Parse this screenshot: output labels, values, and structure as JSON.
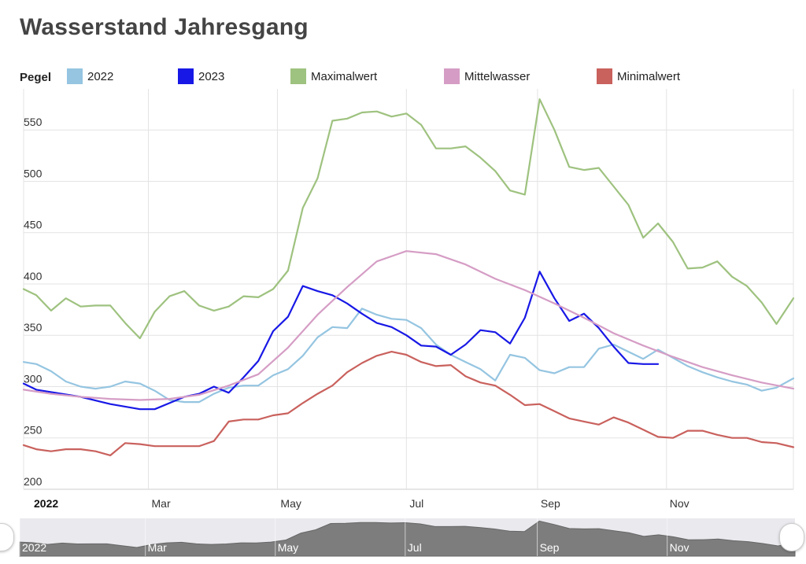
{
  "title": "Wasserstand Jahresgang",
  "legend": {
    "label": "Pegel",
    "items": [
      {
        "name": "2022",
        "color": "#95c5e1"
      },
      {
        "name": "2023",
        "color": "#1818e6"
      },
      {
        "name": "Maximalwert",
        "color": "#9ec27f"
      },
      {
        "name": "Mittelwasser",
        "color": "#d59dc5"
      },
      {
        "name": "Minimalwert",
        "color": "#c9615d"
      }
    ]
  },
  "chart_data": {
    "type": "line",
    "title": "Wasserstand Jahresgang",
    "xlabel": "",
    "ylabel": "",
    "ylim": [
      200,
      590
    ],
    "yticks": [
      200,
      250,
      300,
      350,
      400,
      450,
      500,
      550
    ],
    "xrange": [
      "2022-01-01",
      "2022-12-31"
    ],
    "xticks": [
      {
        "label": "2022",
        "date": "2022-01-01",
        "bold": true
      },
      {
        "label": "Mar",
        "date": "2022-03-01"
      },
      {
        "label": "May",
        "date": "2022-05-01"
      },
      {
        "label": "Jul",
        "date": "2022-07-01"
      },
      {
        "label": "Sep",
        "date": "2022-09-01"
      },
      {
        "label": "Nov",
        "date": "2022-11-01"
      }
    ],
    "grid": true,
    "legend_position": "top",
    "series": [
      {
        "name": "2022",
        "color": "#95c5e1",
        "points": [
          [
            "2022-01-01",
            324
          ],
          [
            "2022-01-07",
            322
          ],
          [
            "2022-01-14",
            315
          ],
          [
            "2022-01-21",
            305
          ],
          [
            "2022-01-28",
            300
          ],
          [
            "2022-02-04",
            298
          ],
          [
            "2022-02-11",
            300
          ],
          [
            "2022-02-18",
            305
          ],
          [
            "2022-02-25",
            303
          ],
          [
            "2022-03-04",
            296
          ],
          [
            "2022-03-11",
            287
          ],
          [
            "2022-03-18",
            285
          ],
          [
            "2022-03-25",
            285
          ],
          [
            "2022-04-01",
            293
          ],
          [
            "2022-04-08",
            299
          ],
          [
            "2022-04-15",
            301
          ],
          [
            "2022-04-22",
            301
          ],
          [
            "2022-04-29",
            311
          ],
          [
            "2022-05-06",
            317
          ],
          [
            "2022-05-13",
            330
          ],
          [
            "2022-05-20",
            348
          ],
          [
            "2022-05-27",
            358
          ],
          [
            "2022-06-03",
            357
          ],
          [
            "2022-06-10",
            376
          ],
          [
            "2022-06-17",
            370
          ],
          [
            "2022-06-24",
            366
          ],
          [
            "2022-07-01",
            365
          ],
          [
            "2022-07-08",
            357
          ],
          [
            "2022-07-15",
            341
          ],
          [
            "2022-07-22",
            331
          ],
          [
            "2022-07-29",
            324
          ],
          [
            "2022-08-05",
            317
          ],
          [
            "2022-08-12",
            306
          ],
          [
            "2022-08-19",
            331
          ],
          [
            "2022-08-26",
            328
          ],
          [
            "2022-09-02",
            316
          ],
          [
            "2022-09-09",
            313
          ],
          [
            "2022-09-16",
            319
          ],
          [
            "2022-09-23",
            319
          ],
          [
            "2022-09-30",
            337
          ],
          [
            "2022-10-07",
            341
          ],
          [
            "2022-10-14",
            334
          ],
          [
            "2022-10-21",
            327
          ],
          [
            "2022-10-28",
            336
          ],
          [
            "2022-11-04",
            328
          ],
          [
            "2022-11-11",
            320
          ],
          [
            "2022-11-18",
            314
          ],
          [
            "2022-11-25",
            309
          ],
          [
            "2022-12-02",
            305
          ],
          [
            "2022-12-09",
            302
          ],
          [
            "2022-12-16",
            296
          ],
          [
            "2022-12-23",
            299
          ],
          [
            "2022-12-31",
            308
          ]
        ]
      },
      {
        "name": "2023",
        "color": "#1818e6",
        "points": [
          [
            "2022-01-01",
            303
          ],
          [
            "2022-01-07",
            297
          ],
          [
            "2022-01-28",
            290
          ],
          [
            "2022-02-11",
            283
          ],
          [
            "2022-02-25",
            278
          ],
          [
            "2022-03-04",
            278
          ],
          [
            "2022-03-11",
            284
          ],
          [
            "2022-03-18",
            290
          ],
          [
            "2022-03-25",
            293
          ],
          [
            "2022-04-01",
            300
          ],
          [
            "2022-04-08",
            294
          ],
          [
            "2022-04-15",
            309
          ],
          [
            "2022-04-22",
            325
          ],
          [
            "2022-04-29",
            354
          ],
          [
            "2022-05-06",
            368
          ],
          [
            "2022-05-13",
            398
          ],
          [
            "2022-05-20",
            393
          ],
          [
            "2022-05-27",
            389
          ],
          [
            "2022-06-03",
            381
          ],
          [
            "2022-06-10",
            371
          ],
          [
            "2022-06-17",
            362
          ],
          [
            "2022-06-24",
            358
          ],
          [
            "2022-07-01",
            350
          ],
          [
            "2022-07-08",
            340
          ],
          [
            "2022-07-15",
            339
          ],
          [
            "2022-07-22",
            331
          ],
          [
            "2022-07-29",
            341
          ],
          [
            "2022-08-05",
            355
          ],
          [
            "2022-08-12",
            353
          ],
          [
            "2022-08-19",
            342
          ],
          [
            "2022-08-26",
            367
          ],
          [
            "2022-09-02",
            412
          ],
          [
            "2022-09-09",
            386
          ],
          [
            "2022-09-16",
            364
          ],
          [
            "2022-09-23",
            371
          ],
          [
            "2022-09-30",
            357
          ],
          [
            "2022-10-07",
            339
          ],
          [
            "2022-10-14",
            323
          ],
          [
            "2022-10-21",
            322
          ],
          [
            "2022-10-28",
            322
          ]
        ]
      },
      {
        "name": "Maximalwert",
        "color": "#9ec27f",
        "points": [
          [
            "2022-01-01",
            395
          ],
          [
            "2022-01-07",
            389
          ],
          [
            "2022-01-14",
            374
          ],
          [
            "2022-01-21",
            386
          ],
          [
            "2022-01-28",
            378
          ],
          [
            "2022-02-04",
            379
          ],
          [
            "2022-02-11",
            379
          ],
          [
            "2022-02-18",
            362
          ],
          [
            "2022-02-25",
            347
          ],
          [
            "2022-03-04",
            373
          ],
          [
            "2022-03-11",
            388
          ],
          [
            "2022-03-18",
            393
          ],
          [
            "2022-03-25",
            379
          ],
          [
            "2022-04-01",
            374
          ],
          [
            "2022-04-08",
            378
          ],
          [
            "2022-04-15",
            388
          ],
          [
            "2022-04-22",
            387
          ],
          [
            "2022-04-29",
            395
          ],
          [
            "2022-05-06",
            413
          ],
          [
            "2022-05-13",
            474
          ],
          [
            "2022-05-20",
            503
          ],
          [
            "2022-05-27",
            559
          ],
          [
            "2022-06-03",
            561
          ],
          [
            "2022-06-10",
            567
          ],
          [
            "2022-06-17",
            568
          ],
          [
            "2022-06-24",
            563
          ],
          [
            "2022-07-01",
            566
          ],
          [
            "2022-07-08",
            555
          ],
          [
            "2022-07-15",
            532
          ],
          [
            "2022-07-22",
            532
          ],
          [
            "2022-07-29",
            534
          ],
          [
            "2022-08-05",
            523
          ],
          [
            "2022-08-12",
            510
          ],
          [
            "2022-08-19",
            491
          ],
          [
            "2022-08-26",
            487
          ],
          [
            "2022-09-02",
            580
          ],
          [
            "2022-09-09",
            550
          ],
          [
            "2022-09-16",
            514
          ],
          [
            "2022-09-23",
            511
          ],
          [
            "2022-09-30",
            513
          ],
          [
            "2022-10-07",
            495
          ],
          [
            "2022-10-14",
            477
          ],
          [
            "2022-10-21",
            445
          ],
          [
            "2022-10-28",
            459
          ],
          [
            "2022-11-04",
            441
          ],
          [
            "2022-11-11",
            415
          ],
          [
            "2022-11-18",
            416
          ],
          [
            "2022-11-25",
            422
          ],
          [
            "2022-12-02",
            407
          ],
          [
            "2022-12-09",
            398
          ],
          [
            "2022-12-16",
            382
          ],
          [
            "2022-12-23",
            361
          ],
          [
            "2022-12-31",
            386
          ]
        ]
      },
      {
        "name": "Mittelwasser",
        "color": "#d59dc5",
        "points": [
          [
            "2022-01-01",
            297
          ],
          [
            "2022-01-14",
            293
          ],
          [
            "2022-01-28",
            290
          ],
          [
            "2022-02-11",
            288
          ],
          [
            "2022-02-25",
            287
          ],
          [
            "2022-03-11",
            288
          ],
          [
            "2022-03-25",
            292
          ],
          [
            "2022-04-08",
            301
          ],
          [
            "2022-04-22",
            312
          ],
          [
            "2022-05-06",
            338
          ],
          [
            "2022-05-20",
            370
          ],
          [
            "2022-06-03",
            397
          ],
          [
            "2022-06-17",
            422
          ],
          [
            "2022-07-01",
            432
          ],
          [
            "2022-07-15",
            429
          ],
          [
            "2022-07-29",
            419
          ],
          [
            "2022-08-12",
            405
          ],
          [
            "2022-08-26",
            394
          ],
          [
            "2022-09-09",
            381
          ],
          [
            "2022-09-23",
            367
          ],
          [
            "2022-10-07",
            352
          ],
          [
            "2022-10-21",
            340
          ],
          [
            "2022-11-04",
            329
          ],
          [
            "2022-11-18",
            319
          ],
          [
            "2022-12-02",
            311
          ],
          [
            "2022-12-16",
            304
          ],
          [
            "2022-12-31",
            298
          ]
        ]
      },
      {
        "name": "Minimalwert",
        "color": "#c9615d",
        "points": [
          [
            "2022-01-01",
            243
          ],
          [
            "2022-01-07",
            239
          ],
          [
            "2022-01-14",
            237
          ],
          [
            "2022-01-21",
            239
          ],
          [
            "2022-01-28",
            239
          ],
          [
            "2022-02-04",
            237
          ],
          [
            "2022-02-11",
            233
          ],
          [
            "2022-02-18",
            245
          ],
          [
            "2022-02-25",
            244
          ],
          [
            "2022-03-04",
            242
          ],
          [
            "2022-03-11",
            242
          ],
          [
            "2022-03-18",
            242
          ],
          [
            "2022-03-25",
            242
          ],
          [
            "2022-04-01",
            247
          ],
          [
            "2022-04-08",
            266
          ],
          [
            "2022-04-15",
            268
          ],
          [
            "2022-04-22",
            268
          ],
          [
            "2022-04-29",
            272
          ],
          [
            "2022-05-06",
            274
          ],
          [
            "2022-05-13",
            284
          ],
          [
            "2022-05-20",
            293
          ],
          [
            "2022-05-27",
            301
          ],
          [
            "2022-06-03",
            314
          ],
          [
            "2022-06-10",
            323
          ],
          [
            "2022-06-17",
            330
          ],
          [
            "2022-06-24",
            334
          ],
          [
            "2022-07-01",
            331
          ],
          [
            "2022-07-08",
            324
          ],
          [
            "2022-07-15",
            320
          ],
          [
            "2022-07-22",
            321
          ],
          [
            "2022-07-29",
            310
          ],
          [
            "2022-08-05",
            304
          ],
          [
            "2022-08-12",
            301
          ],
          [
            "2022-08-19",
            292
          ],
          [
            "2022-08-26",
            282
          ],
          [
            "2022-09-02",
            283
          ],
          [
            "2022-09-09",
            276
          ],
          [
            "2022-09-16",
            269
          ],
          [
            "2022-09-23",
            266
          ],
          [
            "2022-09-30",
            263
          ],
          [
            "2022-10-07",
            270
          ],
          [
            "2022-10-14",
            265
          ],
          [
            "2022-10-21",
            258
          ],
          [
            "2022-10-28",
            251
          ],
          [
            "2022-11-04",
            250
          ],
          [
            "2022-11-11",
            257
          ],
          [
            "2022-11-18",
            257
          ],
          [
            "2022-11-25",
            253
          ],
          [
            "2022-12-02",
            250
          ],
          [
            "2022-12-09",
            250
          ],
          [
            "2022-12-16",
            246
          ],
          [
            "2022-12-23",
            245
          ],
          [
            "2022-12-31",
            241
          ]
        ]
      }
    ]
  },
  "navigator": {
    "labels": [
      "2022",
      "Mar",
      "May",
      "Jul",
      "Sep",
      "Nov"
    ]
  }
}
